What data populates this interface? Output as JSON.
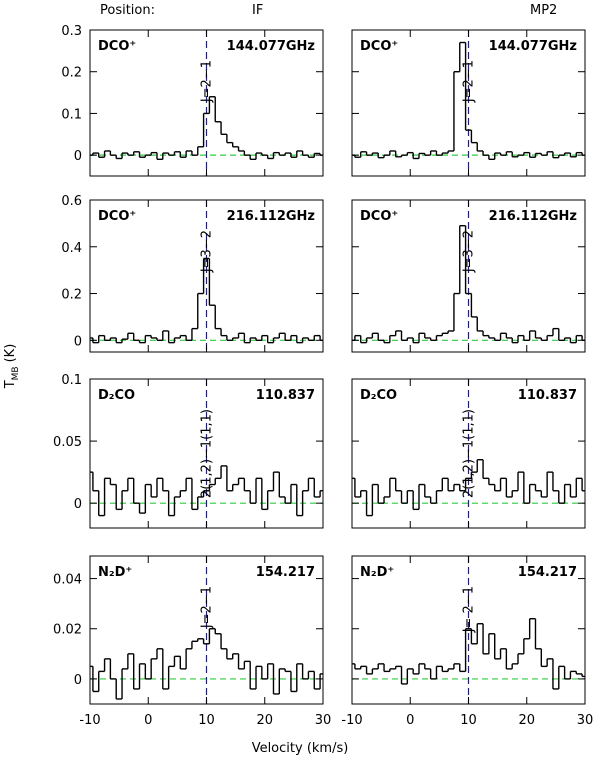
{
  "header": {
    "position": "Position:",
    "columns": [
      "IF",
      "MP2"
    ],
    "ylabel": [
      "T",
      "MB",
      "(K)"
    ],
    "xlabel": "Velocity (km/s)"
  },
  "chart_data": [
    {
      "type": "step",
      "molecule": "DCO⁺",
      "frequency": "144.077GHz",
      "transition": "J=2−1",
      "marker_x": 10,
      "baseline": 0,
      "x": [
        -10,
        -9,
        -8,
        -7,
        -6,
        -5,
        -4,
        -3,
        -2,
        -1,
        0,
        1,
        2,
        3,
        4,
        5,
        6,
        7,
        8,
        9,
        10,
        11,
        12,
        13,
        14,
        15,
        16,
        17,
        18,
        19,
        20,
        21,
        22,
        23,
        24,
        25,
        26,
        27,
        28,
        29,
        30
      ],
      "values": [
        0,
        0.005,
        -0.005,
        0.01,
        0,
        -0.008,
        0.005,
        0,
        0.008,
        -0.005,
        0,
        0.006,
        -0.01,
        0.005,
        0,
        0.008,
        -0.005,
        0.01,
        0,
        0.02,
        0.1,
        0.14,
        0.08,
        0.05,
        0.03,
        0.02,
        0.01,
        0,
        -0.01,
        0.005,
        0,
        -0.008,
        0.006,
        0,
        0.005,
        -0.005,
        0.01,
        0,
        -0.005,
        0.004,
        0
      ],
      "xlim": [
        -10,
        30
      ],
      "ylim": [
        -0.05,
        0.3
      ],
      "xticks": [
        -10,
        0,
        10,
        20,
        30
      ],
      "yticks": [
        0,
        0.1,
        0.2,
        0.3
      ],
      "show_xtick_labels": false,
      "show_ytick_labels": true
    },
    {
      "type": "step",
      "molecule": "DCO⁺",
      "frequency": "144.077GHz",
      "transition": "J=2−1",
      "marker_x": 10,
      "baseline": 0,
      "x": [
        -10,
        -9,
        -8,
        -7,
        -6,
        -5,
        -4,
        -3,
        -2,
        -1,
        0,
        1,
        2,
        3,
        4,
        5,
        6,
        7,
        8,
        9,
        10,
        11,
        12,
        13,
        14,
        15,
        16,
        17,
        18,
        19,
        20,
        21,
        22,
        23,
        24,
        25,
        26,
        27,
        28,
        29,
        30
      ],
      "values": [
        0,
        -0.005,
        0.008,
        0,
        0.005,
        -0.006,
        0,
        0.01,
        -0.004,
        0,
        0.006,
        -0.008,
        0.004,
        0,
        0.01,
        0,
        0.005,
        0.01,
        0.2,
        0.27,
        0.06,
        0.03,
        0.01,
        0,
        -0.01,
        0.005,
        0,
        0.008,
        -0.004,
        0,
        0.006,
        -0.005,
        0.004,
        0,
        0.008,
        -0.006,
        0,
        0.005,
        -0.004,
        0.006,
        0
      ],
      "xlim": [
        -10,
        30
      ],
      "ylim": [
        -0.05,
        0.3
      ],
      "xticks": [
        -10,
        0,
        10,
        20,
        30
      ],
      "yticks": [
        0,
        0.1,
        0.2,
        0.3
      ],
      "show_xtick_labels": false,
      "show_ytick_labels": false
    },
    {
      "type": "step",
      "molecule": "DCO⁺",
      "frequency": "216.112GHz",
      "transition": "J=3−2",
      "marker_x": 10,
      "baseline": 0,
      "x": [
        -10,
        -9,
        -8,
        -7,
        -6,
        -5,
        -4,
        -3,
        -2,
        -1,
        0,
        1,
        2,
        3,
        4,
        5,
        6,
        7,
        8,
        9,
        10,
        11,
        12,
        13,
        14,
        15,
        16,
        17,
        18,
        19,
        20,
        21,
        22,
        23,
        24,
        25,
        26,
        27,
        28,
        29,
        30
      ],
      "values": [
        0.01,
        -0.01,
        0.02,
        0,
        0.01,
        -0.01,
        0.005,
        0.03,
        0,
        -0.01,
        0.02,
        0.01,
        0,
        0.04,
        -0.01,
        0.01,
        0.02,
        0,
        0.05,
        0.2,
        0.35,
        0.15,
        0.05,
        0.02,
        0,
        0.01,
        0.03,
        -0.01,
        0.01,
        0,
        0.02,
        -0.01,
        0.01,
        0.03,
        0,
        0.02,
        -0.01,
        0.01,
        0,
        0.02,
        0
      ],
      "xlim": [
        -10,
        30
      ],
      "ylim": [
        -0.05,
        0.6
      ],
      "xticks": [
        -10,
        0,
        10,
        20,
        30
      ],
      "yticks": [
        0,
        0.2,
        0.4,
        0.6
      ],
      "show_xtick_labels": false,
      "show_ytick_labels": true
    },
    {
      "type": "step",
      "molecule": "DCO⁺",
      "frequency": "216.112GHz",
      "transition": "J=3−2",
      "marker_x": 10,
      "baseline": 0,
      "x": [
        -10,
        -9,
        -8,
        -7,
        -6,
        -5,
        -4,
        -3,
        -2,
        -1,
        0,
        1,
        2,
        3,
        4,
        5,
        6,
        7,
        8,
        9,
        10,
        11,
        12,
        13,
        14,
        15,
        16,
        17,
        18,
        19,
        20,
        21,
        22,
        23,
        24,
        25,
        26,
        27,
        28,
        29,
        30
      ],
      "values": [
        0,
        0.02,
        -0.01,
        0.01,
        0.03,
        0,
        -0.01,
        0.02,
        0.04,
        0,
        0.01,
        -0.01,
        0.03,
        0.01,
        0,
        0.02,
        0.03,
        0.04,
        0.2,
        0.49,
        0.2,
        0.1,
        0.04,
        0.02,
        0.01,
        0,
        0.03,
        0.01,
        -0.01,
        0.02,
        0,
        0.04,
        0.01,
        0,
        0.02,
        0.05,
        0,
        0.01,
        -0.01,
        0.02,
        0
      ],
      "xlim": [
        -10,
        30
      ],
      "ylim": [
        -0.05,
        0.6
      ],
      "xticks": [
        -10,
        0,
        10,
        20,
        30
      ],
      "yticks": [
        0,
        0.2,
        0.4,
        0.6
      ],
      "show_xtick_labels": false,
      "show_ytick_labels": false
    },
    {
      "type": "step",
      "molecule": "D₂CO",
      "frequency": "110.837",
      "transition": "2(1,2)−1(1,1)",
      "marker_x": 10,
      "baseline": 0,
      "x": [
        -10,
        -9,
        -8,
        -7,
        -6,
        -5,
        -4,
        -3,
        -2,
        -1,
        0,
        1,
        2,
        3,
        4,
        5,
        6,
        7,
        8,
        9,
        10,
        11,
        12,
        13,
        14,
        15,
        16,
        17,
        18,
        19,
        20,
        21,
        22,
        23,
        24,
        25,
        26,
        27,
        28,
        29,
        30
      ],
      "values": [
        0.025,
        0.01,
        -0.01,
        0.02,
        0.015,
        -0.005,
        0.01,
        0.02,
        0,
        -0.008,
        0.015,
        0.005,
        0.02,
        0.01,
        -0.01,
        0.005,
        0.01,
        0.02,
        -0.005,
        0.005,
        0.01,
        0.015,
        0.02,
        0.03,
        0.01,
        0.015,
        0.02,
        0.01,
        0,
        0.02,
        -0.005,
        0.01,
        0.025,
        0.005,
        0,
        0.015,
        -0.01,
        0.01,
        0.02,
        0.005,
        0.01
      ],
      "xlim": [
        -10,
        30
      ],
      "ylim": [
        -0.02,
        0.1
      ],
      "xticks": [
        -10,
        0,
        10,
        20,
        30
      ],
      "yticks": [
        0,
        0.05,
        0.1
      ],
      "show_xtick_labels": false,
      "show_ytick_labels": true
    },
    {
      "type": "step",
      "molecule": "D₂CO",
      "frequency": "110.837",
      "transition": "2(1,2)−1(1,1)",
      "marker_x": 10,
      "baseline": 0,
      "x": [
        -10,
        -9,
        -8,
        -7,
        -6,
        -5,
        -4,
        -3,
        -2,
        -1,
        0,
        1,
        2,
        3,
        4,
        5,
        6,
        7,
        8,
        9,
        10,
        11,
        12,
        13,
        14,
        15,
        16,
        17,
        18,
        19,
        20,
        21,
        22,
        23,
        24,
        25,
        26,
        27,
        28,
        29,
        30
      ],
      "values": [
        0.02,
        0.005,
        0.01,
        -0.01,
        0.015,
        0,
        0.005,
        0.02,
        0.01,
        0,
        0.01,
        -0.005,
        0.015,
        0.005,
        0,
        0.01,
        0.02,
        0.01,
        0.015,
        0.01,
        0.02,
        0.025,
        0.035,
        0.02,
        0.015,
        0.01,
        0.02,
        0.005,
        0.01,
        0.025,
        0,
        0.015,
        0.01,
        0.005,
        0.025,
        0.01,
        0,
        0.015,
        0.005,
        0.02,
        0.01
      ],
      "xlim": [
        -10,
        30
      ],
      "ylim": [
        -0.02,
        0.1
      ],
      "xticks": [
        -10,
        0,
        10,
        20,
        30
      ],
      "yticks": [
        0,
        0.05,
        0.1
      ],
      "show_xtick_labels": false,
      "show_ytick_labels": false
    },
    {
      "type": "step",
      "molecule": "N₂D⁺",
      "frequency": "154.217",
      "transition": "J=2−1",
      "marker_x": 10,
      "baseline": 0,
      "x": [
        -10,
        -9,
        -8,
        -7,
        -6,
        -5,
        -4,
        -3,
        -2,
        -1,
        0,
        1,
        2,
        3,
        4,
        5,
        6,
        7,
        8,
        9,
        10,
        11,
        12,
        13,
        14,
        15,
        16,
        17,
        18,
        19,
        20,
        21,
        22,
        23,
        24,
        25,
        26,
        27,
        28,
        29,
        30
      ],
      "values": [
        0.005,
        -0.005,
        0.003,
        0.008,
        0,
        -0.008,
        0.004,
        0.01,
        -0.004,
        0.006,
        0,
        0.008,
        0.012,
        -0.004,
        0.005,
        0.009,
        0.004,
        0.012,
        0.015,
        0.016,
        0.014,
        0.02,
        0.018,
        0.012,
        0.008,
        0.01,
        0.004,
        0.007,
        -0.004,
        0.005,
        0,
        0.006,
        -0.006,
        0.004,
        0.003,
        -0.005,
        0.006,
        0,
        0.003,
        -0.004,
        0.002
      ],
      "xlim": [
        -10,
        30
      ],
      "ylim": [
        -0.01,
        0.049
      ],
      "xticks": [
        -10,
        0,
        10,
        20,
        30
      ],
      "yticks": [
        0,
        0.02,
        0.04
      ],
      "show_xtick_labels": true,
      "show_ytick_labels": true
    },
    {
      "type": "step",
      "molecule": "N₂D⁺",
      "frequency": "154.217",
      "transition": "J= 2−1",
      "marker_x": 10,
      "baseline": 0,
      "x": [
        -10,
        -9,
        -8,
        -7,
        -6,
        -5,
        -4,
        -3,
        -2,
        -1,
        0,
        1,
        2,
        3,
        4,
        5,
        6,
        7,
        8,
        9,
        10,
        11,
        12,
        13,
        14,
        15,
        16,
        17,
        18,
        19,
        20,
        21,
        22,
        23,
        24,
        25,
        26,
        27,
        28,
        29,
        30
      ],
      "values": [
        0.006,
        0.004,
        0.005,
        0.002,
        0.004,
        0.006,
        0.003,
        0.004,
        0.005,
        -0.002,
        0.004,
        0.002,
        0.006,
        0.004,
        0,
        0.005,
        0.003,
        0.004,
        0.006,
        0.003,
        0.02,
        0.014,
        0.022,
        0.01,
        0.018,
        0.008,
        0.012,
        0.004,
        0.006,
        0.01,
        0.016,
        0.024,
        0.012,
        0.005,
        0.008,
        -0.004,
        0.005,
        0,
        0.003,
        0.002,
        0.001
      ],
      "xlim": [
        -10,
        30
      ],
      "ylim": [
        -0.01,
        0.049
      ],
      "xticks": [
        -10,
        0,
        10,
        20,
        30
      ],
      "yticks": [
        0,
        0.02,
        0.04
      ],
      "show_xtick_labels": true,
      "show_ytick_labels": false
    }
  ]
}
